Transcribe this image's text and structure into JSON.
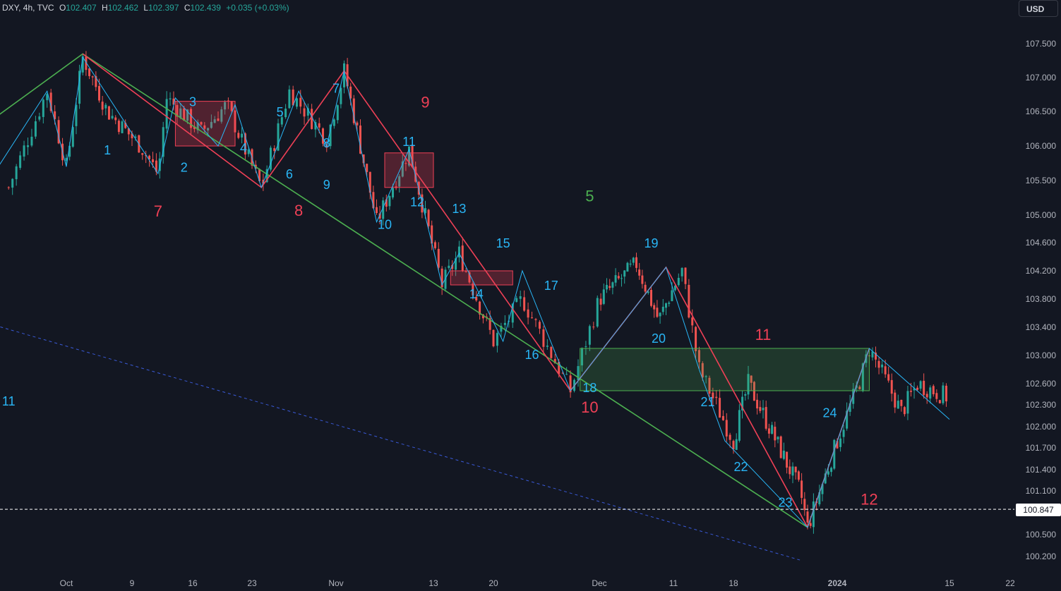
{
  "header": {
    "symbol": "DXY, 4h, TVC",
    "o_label": "O",
    "o": "102.407",
    "h_label": "H",
    "h": "102.462",
    "l_label": "L",
    "l": "102.397",
    "c_label": "C",
    "c": "102.439",
    "change": "+0.035 (+0.03%)"
  },
  "currency_button": "USD",
  "last_price": "100.847",
  "colors": {
    "background": "#131722",
    "bull": "#26a69a",
    "bear": "#ef5350",
    "wave_blue": "#29b6f6",
    "wave_red": "#ef4056",
    "wave_green": "#4caf50"
  },
  "chart_data": {
    "type": "candlestick",
    "symbol": "DXY",
    "interval": "4h",
    "ylim": [
      100.05,
      108.0
    ],
    "y_ticks": [
      "107.500",
      "107.000",
      "106.500",
      "106.000",
      "105.500",
      "105.000",
      "104.600",
      "104.200",
      "103.800",
      "103.400",
      "103.000",
      "102.600",
      "102.300",
      "102.000",
      "101.700",
      "101.400",
      "101.100",
      "100.500",
      "100.200"
    ],
    "x_ticks": [
      "Oct",
      "9",
      "16",
      "23",
      "Nov",
      "13",
      "20",
      "Dec",
      "11",
      "18",
      "2024",
      "15",
      "22"
    ],
    "last_close": 102.439,
    "current_price_line": 100.847,
    "price_path": [
      [
        "Sep 25",
        105.4
      ],
      [
        "Sep 29",
        106.8
      ],
      [
        "Oct 1",
        105.7
      ],
      [
        "Oct 3",
        107.3
      ],
      [
        "Oct 6",
        106.5
      ],
      [
        "Oct 10",
        106.0
      ],
      [
        "Oct 12",
        105.6
      ],
      [
        "Oct 13",
        106.7
      ],
      [
        "Oct 17",
        106.2
      ],
      [
        "Oct 20",
        106.6
      ],
      [
        "Oct 24",
        105.4
      ],
      [
        "Oct 27",
        106.8
      ],
      [
        "Oct 31",
        106.1
      ],
      [
        "Nov 2",
        107.1
      ],
      [
        "Nov 6",
        104.9
      ],
      [
        "Nov 10",
        105.95
      ],
      [
        "Nov 14",
        104.0
      ],
      [
        "Nov 16",
        104.45
      ],
      [
        "Nov 20",
        103.2
      ],
      [
        "Nov 23",
        103.8
      ],
      [
        "Nov 28",
        102.5
      ],
      [
        "Dec 1",
        103.8
      ],
      [
        "Dec 6",
        104.3
      ],
      [
        "Dec 9",
        103.5
      ],
      [
        "Dec 12",
        104.2
      ],
      [
        "Dec 14",
        102.8
      ],
      [
        "Dec 18",
        101.8
      ],
      [
        "Dec 20",
        102.6
      ],
      [
        "Dec 27",
        101.1
      ],
      [
        "Dec 28",
        100.6
      ],
      [
        "Jan 4",
        102.7
      ],
      [
        "Jan 5",
        103.1
      ],
      [
        "Jan 9",
        102.2
      ],
      [
        "Jan 11",
        102.6
      ],
      [
        "Jan 15",
        102.4
      ]
    ],
    "wave_labels_blue": [
      "1",
      "2",
      "3",
      "4",
      "5",
      "6",
      "7",
      "8",
      "9",
      "10",
      "11",
      "12",
      "13",
      "14",
      "15",
      "16",
      "17",
      "18",
      "19",
      "20",
      "21",
      "22",
      "23",
      "24",
      "11"
    ],
    "wave_labels_red": [
      "7",
      "8",
      "9",
      "10",
      "11",
      "12"
    ],
    "wave_labels_green": [
      "5"
    ],
    "zones": [
      {
        "from": "Oct 14",
        "to": "Oct 21",
        "low": 106.0,
        "high": 106.65,
        "type": "red"
      },
      {
        "from": "Nov 7",
        "to": "Nov 13",
        "low": 105.4,
        "high": 105.9,
        "type": "red"
      },
      {
        "from": "Nov 15",
        "to": "Nov 22",
        "low": 104.0,
        "high": 104.2,
        "type": "red"
      },
      {
        "from": "Nov 29",
        "to": "Jan 5",
        "low": 102.5,
        "high": 103.1,
        "type": "green"
      }
    ]
  }
}
